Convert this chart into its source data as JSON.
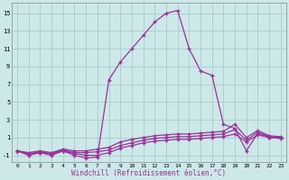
{
  "xlabel": "Windchill (Refroidissement éolien,°C)",
  "x_values": [
    0,
    1,
    2,
    3,
    4,
    5,
    6,
    7,
    8,
    9,
    10,
    11,
    12,
    13,
    14,
    15,
    16,
    17,
    18,
    19,
    20,
    21,
    22,
    23
  ],
  "line1_y": [
    -0.5,
    -1.0,
    -0.7,
    -1.0,
    -0.5,
    -1.0,
    -1.3,
    -1.2,
    7.5,
    9.5,
    11.0,
    12.5,
    14.0,
    15.0,
    15.3,
    11.0,
    8.5,
    8.0,
    2.5,
    2.0,
    -0.5,
    1.5,
    1.0,
    1.0
  ],
  "line2_y": [
    -0.5,
    -0.7,
    -0.5,
    -0.7,
    -0.3,
    -0.5,
    -0.5,
    -0.3,
    -0.1,
    0.5,
    0.8,
    1.0,
    1.2,
    1.3,
    1.4,
    1.4,
    1.5,
    1.6,
    1.7,
    2.5,
    1.0,
    1.8,
    1.2,
    1.1
  ],
  "line3_y": [
    -0.5,
    -0.8,
    -0.6,
    -0.8,
    -0.4,
    -0.7,
    -0.7,
    -0.6,
    -0.4,
    0.1,
    0.4,
    0.7,
    0.9,
    1.0,
    1.1,
    1.1,
    1.2,
    1.3,
    1.4,
    1.9,
    0.7,
    1.6,
    1.1,
    1.0
  ],
  "line4_y": [
    -0.5,
    -0.9,
    -0.7,
    -0.9,
    -0.5,
    -0.8,
    -1.0,
    -1.0,
    -0.7,
    -0.2,
    0.1,
    0.4,
    0.6,
    0.7,
    0.8,
    0.8,
    0.9,
    1.0,
    1.1,
    1.4,
    0.5,
    1.3,
    1.0,
    0.9
  ],
  "line_color": "#993399",
  "bg_color": "#cce8e8",
  "grid_color": "#b0d0d0",
  "ylim": [
    -1.8,
    16.2
  ],
  "yticks": [
    -1,
    1,
    3,
    5,
    7,
    9,
    11,
    13,
    15
  ],
  "xticks": [
    0,
    1,
    2,
    3,
    4,
    5,
    6,
    7,
    8,
    9,
    10,
    11,
    12,
    13,
    14,
    15,
    16,
    17,
    18,
    19,
    20,
    21,
    22,
    23
  ],
  "marker": "+"
}
